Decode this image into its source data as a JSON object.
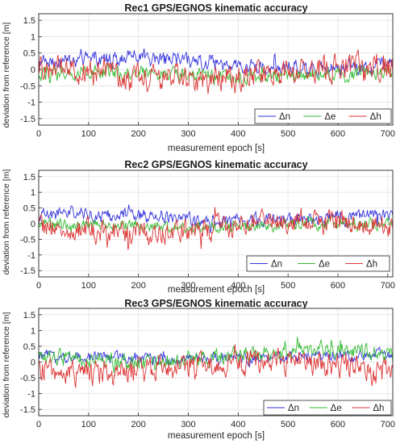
{
  "figure": {
    "ylabel": "deviation from reference [m]"
  },
  "chart_data": [
    {
      "type": "line",
      "title": "Rec1 GPS/EGNOS kinematic accuracy",
      "xlabel": "measurement epoch [s]",
      "ylabel": "deviation from reference [m]",
      "xlim": [
        0,
        710
      ],
      "ylim": [
        -1.7,
        1.7
      ],
      "xticks": [
        "0",
        "100",
        "200",
        "300",
        "400",
        "500",
        "600",
        "700"
      ],
      "yticks": [
        "1.5",
        "1",
        "0.5",
        "0",
        "-0.5",
        "-1",
        "-1.5"
      ],
      "grid": true,
      "legend": "bottom-right",
      "series": [
        {
          "name": "Δn",
          "color": "#3333dd",
          "mean": 0.15,
          "amplitude": 0.22,
          "mean_range": [
            0.05,
            0.35
          ],
          "amplitude_range": [
            0.15,
            0.28
          ],
          "y_range": [
            -0.6,
            0.85
          ]
        },
        {
          "name": "Δe",
          "color": "#33bb33",
          "mean": -0.15,
          "amplitude": 0.2,
          "mean_range": [
            -0.2,
            -0.1
          ],
          "amplitude_range": [
            0.15,
            0.25
          ],
          "y_range": [
            -0.65,
            0.45
          ]
        },
        {
          "name": "Δh",
          "color": "#dd3333",
          "mean": 0.0,
          "amplitude": 0.38,
          "mean_range": [
            -0.3,
            0.1
          ],
          "amplitude_range": [
            0.3,
            0.45
          ],
          "y_range": [
            -1.3,
            1.1
          ]
        }
      ]
    },
    {
      "type": "line",
      "title": "Rec2 GPS/EGNOS kinematic accuracy",
      "xlabel": "measurement epoch [s]",
      "ylabel": "deviation from reference [m]",
      "xlim": [
        0,
        710
      ],
      "ylim": [
        -1.7,
        1.7
      ],
      "xticks": [
        "0",
        "100",
        "200",
        "300",
        "400",
        "500",
        "600",
        "700"
      ],
      "yticks": [
        "1.5",
        "1",
        "0.5",
        "0",
        "-0.5",
        "-1",
        "-1.5"
      ],
      "grid": true,
      "legend": "bottom-right",
      "series": [
        {
          "name": "Δn",
          "color": "#3333dd",
          "mean": 0.2,
          "amplitude": 0.2,
          "mean_range": [
            0.1,
            0.3
          ],
          "amplitude_range": [
            0.15,
            0.25
          ],
          "y_range": [
            -0.45,
            0.85
          ]
        },
        {
          "name": "Δe",
          "color": "#33bb33",
          "mean": -0.05,
          "amplitude": 0.18,
          "mean_range": [
            -0.1,
            0.0
          ],
          "amplitude_range": [
            0.15,
            0.2
          ],
          "y_range": [
            -0.55,
            0.45
          ]
        },
        {
          "name": "Δh",
          "color": "#dd3333",
          "mean": -0.05,
          "amplitude": 0.36,
          "mean_range": [
            -0.3,
            0.1
          ],
          "amplitude_range": [
            0.3,
            0.4
          ],
          "y_range": [
            -1.25,
            0.95
          ]
        }
      ]
    },
    {
      "type": "line",
      "title": "Rec3 GPS/EGNOS kinematic accuracy",
      "xlabel": "measurement epoch [s]",
      "ylabel": "deviation from reference [m]",
      "xlim": [
        0,
        710
      ],
      "ylim": [
        -1.7,
        1.7
      ],
      "xticks": [
        "0",
        "100",
        "200",
        "300",
        "400",
        "500",
        "600",
        "700"
      ],
      "yticks": [
        "1.5",
        "1",
        "0.5",
        "0",
        "-0.5",
        "-1",
        "-1.5"
      ],
      "grid": true,
      "legend": "bottom-right",
      "series": [
        {
          "name": "Δn",
          "color": "#3333dd",
          "mean": 0.15,
          "amplitude": 0.18,
          "mean_range": [
            0.1,
            0.2
          ],
          "amplitude_range": [
            0.15,
            0.2
          ],
          "y_range": [
            -0.3,
            0.7
          ]
        },
        {
          "name": "Δe",
          "color": "#33bb33",
          "mean": 0.1,
          "amplitude": 0.22,
          "mean_range": [
            0.0,
            0.35
          ],
          "amplitude_range": [
            0.15,
            0.3
          ],
          "y_range": [
            -0.35,
            0.85
          ]
        },
        {
          "name": "Δh",
          "color": "#dd3333",
          "mean": -0.05,
          "amplitude": 0.38,
          "mean_range": [
            -0.35,
            0.05
          ],
          "amplitude_range": [
            0.3,
            0.45
          ],
          "y_range": [
            -1.45,
            1.4
          ]
        }
      ]
    }
  ]
}
